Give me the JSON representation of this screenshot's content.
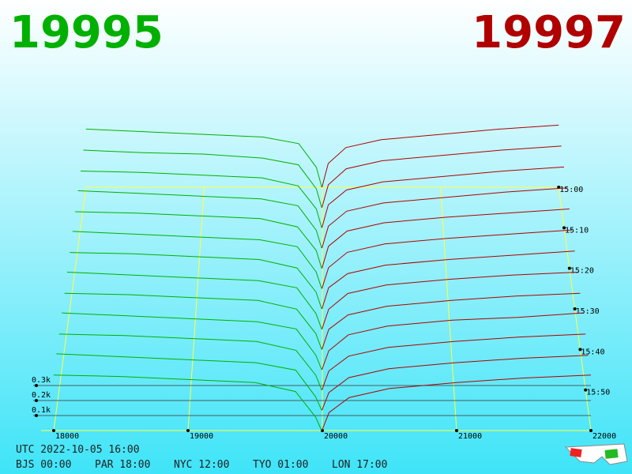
{
  "chart_data": {
    "type": "depth3d",
    "bid_label": "19995",
    "ask_label": "19997",
    "bid_color": "#00b000",
    "ask_color": "#b00000",
    "xlim": [
      18000,
      22000
    ],
    "xticks": [
      18000,
      19000,
      20000,
      21000,
      22000
    ],
    "tlim": [
      900,
      960
    ],
    "tticks": [
      {
        "value": 900,
        "label": "15:00"
      },
      {
        "value": 910,
        "label": "15:10"
      },
      {
        "value": 920,
        "label": "15:20"
      },
      {
        "value": 930,
        "label": "15:30"
      },
      {
        "value": 940,
        "label": "15:40"
      },
      {
        "value": 950,
        "label": "15:50"
      }
    ],
    "zlim": [
      0,
      1
    ],
    "zticks": [
      {
        "value": 0.1,
        "label": "0.1k"
      },
      {
        "value": 0.2,
        "label": "0.2k"
      },
      {
        "value": 0.3,
        "label": "0.3k"
      }
    ],
    "bid_prices": [
      18000,
      18500,
      19000,
      19500,
      19800,
      19950,
      19995
    ],
    "ask_prices": [
      19997,
      20050,
      20200,
      20500,
      21000,
      21500,
      22000
    ],
    "snapshots": [
      {
        "t": 900,
        "bids": [
          0.44,
          0.42,
          0.4,
          0.38,
          0.33,
          0.15,
          0
        ],
        "asks": [
          0,
          0.18,
          0.3,
          0.36,
          0.4,
          0.44,
          0.47
        ]
      },
      {
        "t": 905,
        "bids": [
          0.43,
          0.41,
          0.4,
          0.37,
          0.32,
          0.14,
          0
        ],
        "asks": [
          0,
          0.17,
          0.29,
          0.35,
          0.39,
          0.43,
          0.46
        ]
      },
      {
        "t": 910,
        "bids": [
          0.42,
          0.41,
          0.39,
          0.37,
          0.31,
          0.14,
          0
        ],
        "asks": [
          0,
          0.17,
          0.28,
          0.34,
          0.38,
          0.42,
          0.45
        ]
      },
      {
        "t": 915,
        "bids": [
          0.42,
          0.4,
          0.38,
          0.36,
          0.31,
          0.13,
          0
        ],
        "asks": [
          0,
          0.16,
          0.27,
          0.33,
          0.37,
          0.41,
          0.44
        ]
      },
      {
        "t": 920,
        "bids": [
          0.41,
          0.4,
          0.38,
          0.36,
          0.3,
          0.13,
          0
        ],
        "asks": [
          0,
          0.16,
          0.27,
          0.33,
          0.37,
          0.4,
          0.43
        ]
      },
      {
        "t": 925,
        "bids": [
          0.41,
          0.39,
          0.37,
          0.35,
          0.3,
          0.12,
          0
        ],
        "asks": [
          0,
          0.15,
          0.26,
          0.32,
          0.36,
          0.39,
          0.42
        ]
      },
      {
        "t": 930,
        "bids": [
          0.4,
          0.39,
          0.37,
          0.35,
          0.29,
          0.12,
          0
        ],
        "asks": [
          0,
          0.15,
          0.25,
          0.31,
          0.35,
          0.38,
          0.41
        ]
      },
      {
        "t": 935,
        "bids": [
          0.4,
          0.38,
          0.36,
          0.34,
          0.29,
          0.11,
          0
        ],
        "asks": [
          0,
          0.14,
          0.25,
          0.31,
          0.35,
          0.38,
          0.4
        ]
      },
      {
        "t": 940,
        "bids": [
          0.39,
          0.38,
          0.36,
          0.34,
          0.28,
          0.11,
          0
        ],
        "asks": [
          0,
          0.14,
          0.24,
          0.3,
          0.34,
          0.37,
          0.39
        ]
      },
      {
        "t": 945,
        "bids": [
          0.39,
          0.37,
          0.35,
          0.33,
          0.28,
          0.1,
          0
        ],
        "asks": [
          0,
          0.13,
          0.24,
          0.3,
          0.34,
          0.36,
          0.39
        ]
      },
      {
        "t": 950,
        "bids": [
          0.38,
          0.37,
          0.35,
          0.33,
          0.27,
          0.1,
          0
        ],
        "asks": [
          0,
          0.13,
          0.23,
          0.29,
          0.33,
          0.36,
          0.38
        ]
      },
      {
        "t": 955,
        "bids": [
          0.38,
          0.36,
          0.34,
          0.32,
          0.27,
          0.09,
          0
        ],
        "asks": [
          0,
          0.12,
          0.22,
          0.28,
          0.32,
          0.35,
          0.37
        ]
      },
      {
        "t": 960,
        "bids": [
          0.37,
          0.36,
          0.34,
          0.32,
          0.26,
          0.09,
          0
        ],
        "asks": [
          0,
          0.12,
          0.22,
          0.28,
          0.32,
          0.35,
          0.37
        ]
      }
    ],
    "footer": {
      "utc": "UTC 2022-10-05 16:00",
      "zones": [
        "BJS 00:00",
        "PAR 18:00",
        "NYC 12:00",
        "TYO 01:00",
        "LON 17:00"
      ]
    }
  }
}
